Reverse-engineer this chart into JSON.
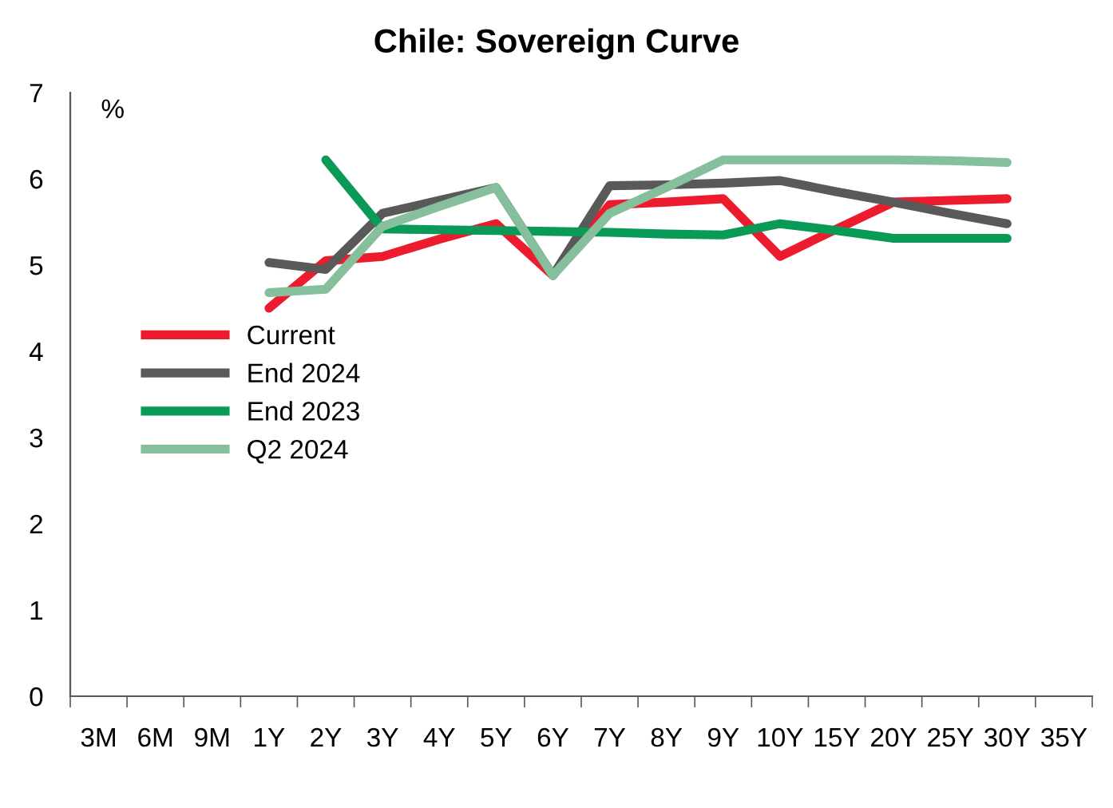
{
  "chart_data": {
    "type": "line",
    "title": "Chile: Sovereign Curve",
    "ylabel": "%",
    "categories": [
      "3M",
      "6M",
      "9M",
      "1Y",
      "2Y",
      "3Y",
      "4Y",
      "5Y",
      "6Y",
      "7Y",
      "8Y",
      "9Y",
      "10Y",
      "15Y",
      "20Y",
      "25Y",
      "30Y",
      "35Y"
    ],
    "series": [
      {
        "name": "Current",
        "color": "#ec1c2e",
        "values": [
          null,
          null,
          null,
          4.5,
          5.05,
          5.1,
          5.3,
          5.48,
          4.88,
          5.7,
          5.73,
          5.77,
          5.1,
          5.42,
          5.73,
          5.75,
          5.77,
          null
        ]
      },
      {
        "name": "End 2024",
        "color": "#595959",
        "values": [
          null,
          null,
          null,
          5.03,
          4.95,
          5.6,
          5.75,
          5.9,
          4.88,
          5.92,
          5.93,
          5.95,
          5.98,
          5.85,
          5.73,
          5.6,
          5.48,
          null
        ]
      },
      {
        "name": "End 2023",
        "color": "#0a9a58",
        "values": [
          null,
          null,
          null,
          null,
          6.22,
          5.42,
          5.41,
          5.4,
          5.39,
          5.38,
          5.36,
          5.35,
          5.48,
          5.4,
          5.31,
          5.31,
          5.31,
          null
        ]
      },
      {
        "name": "Q2 2024",
        "color": "#86bf9b",
        "values": [
          null,
          null,
          null,
          4.68,
          4.72,
          5.45,
          5.68,
          5.9,
          4.88,
          5.6,
          5.9,
          6.22,
          6.22,
          6.22,
          6.22,
          6.21,
          6.19,
          null
        ]
      }
    ],
    "ylim": [
      0,
      7
    ],
    "yticks": [
      0,
      1,
      2,
      3,
      4,
      5,
      6,
      7
    ],
    "grid": false,
    "legend": "center left",
    "marker": "none",
    "line_style": "solid"
  }
}
